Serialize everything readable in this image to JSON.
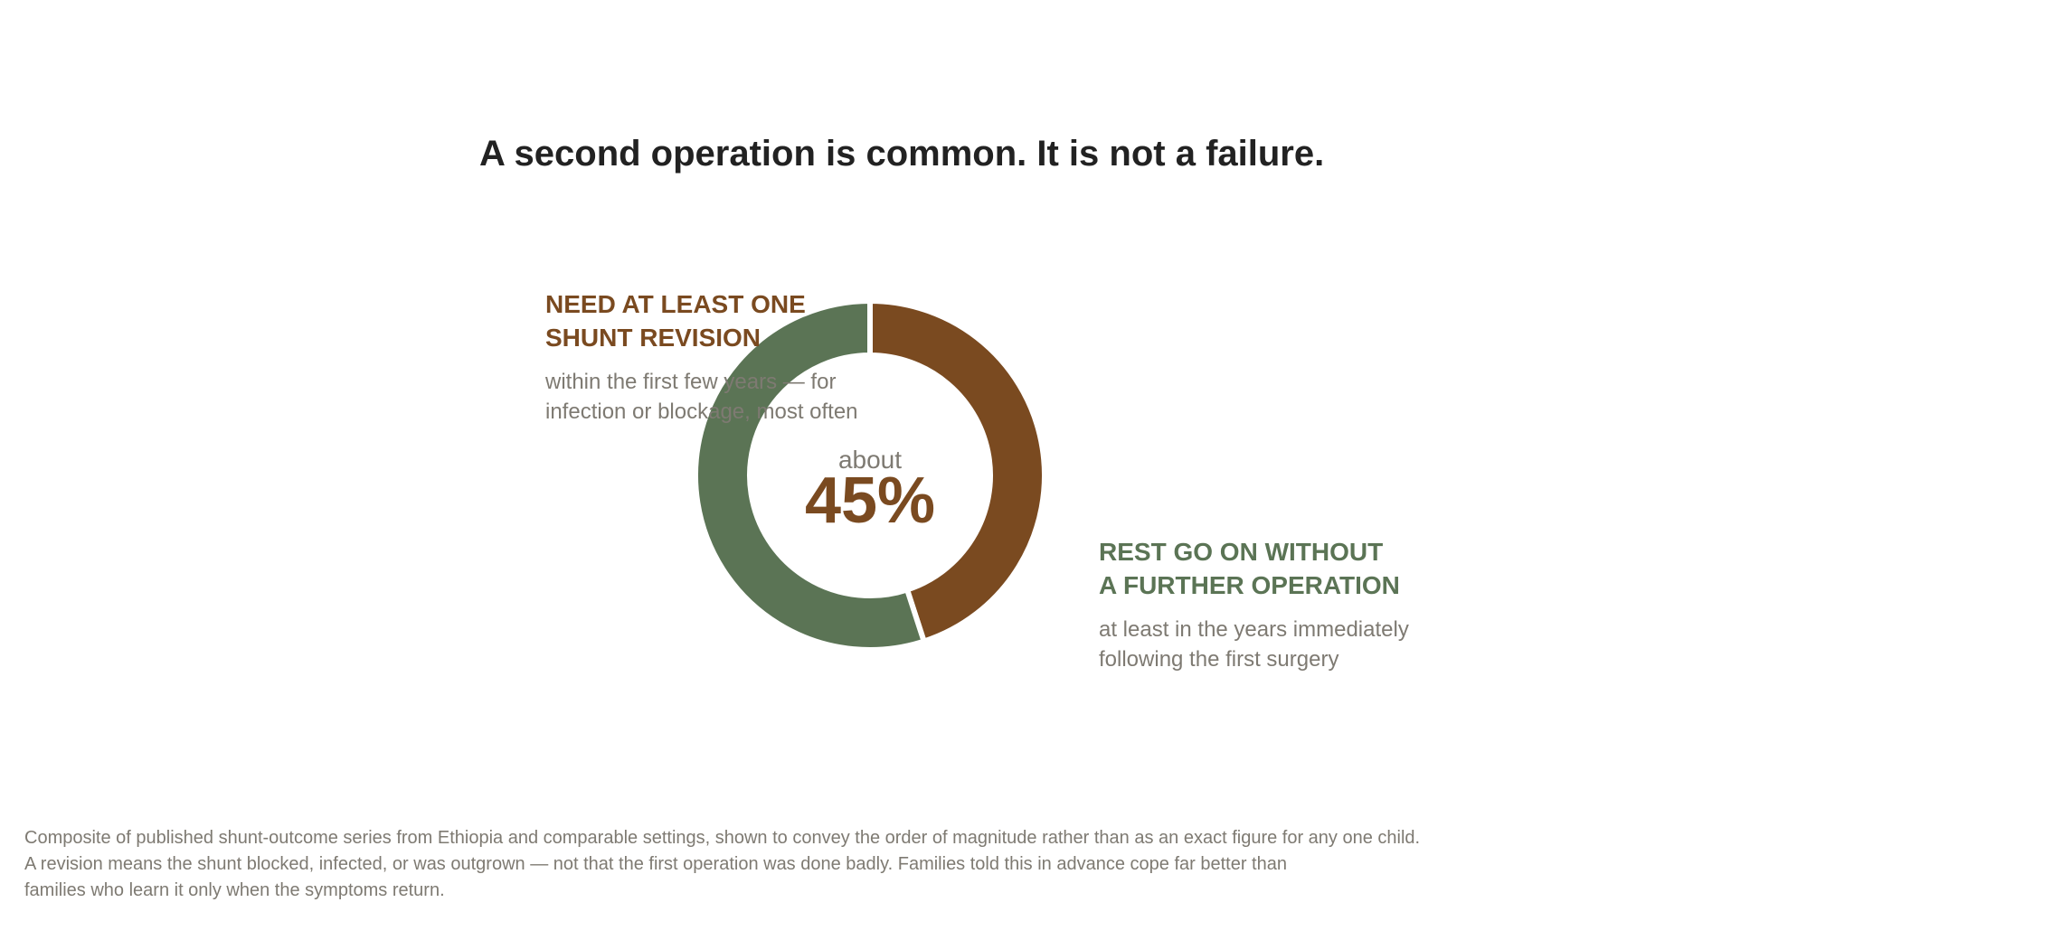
{
  "title": "A second operation is common. It is not a failure.",
  "colors": {
    "revision": "#7a4a20",
    "rest": "#5b7455",
    "muted": "#7e7a72",
    "ink": "#222222"
  },
  "chart_data": {
    "type": "pie",
    "variant": "donut",
    "title": "A second operation is common. It is not a failure.",
    "center_label": {
      "prefix": "about",
      "value": "45%"
    },
    "slices": [
      {
        "label": "NEED AT LEAST ONE\nSHUNT REVISION",
        "value": 45,
        "color": "#7a4a20",
        "description": "within the first few years — for\ninfection or blockage, most often"
      },
      {
        "label": "REST GO ON WITHOUT\nA FURTHER OPERATION",
        "value": 55,
        "color": "#5b7455",
        "description": "at least in the years immediately\nfollowing the first surgery"
      }
    ]
  },
  "footnote": {
    "lines": [
      "Composite of published shunt-outcome series from Ethiopia and comparable settings, shown to convey the order of magnitude rather than as an exact figure for any one child.",
      "A revision means the shunt blocked, infected, or was outgrown — not that the first operation was done badly. Families told this in advance cope far better than",
      "families who learn it only when the symptoms return."
    ]
  }
}
